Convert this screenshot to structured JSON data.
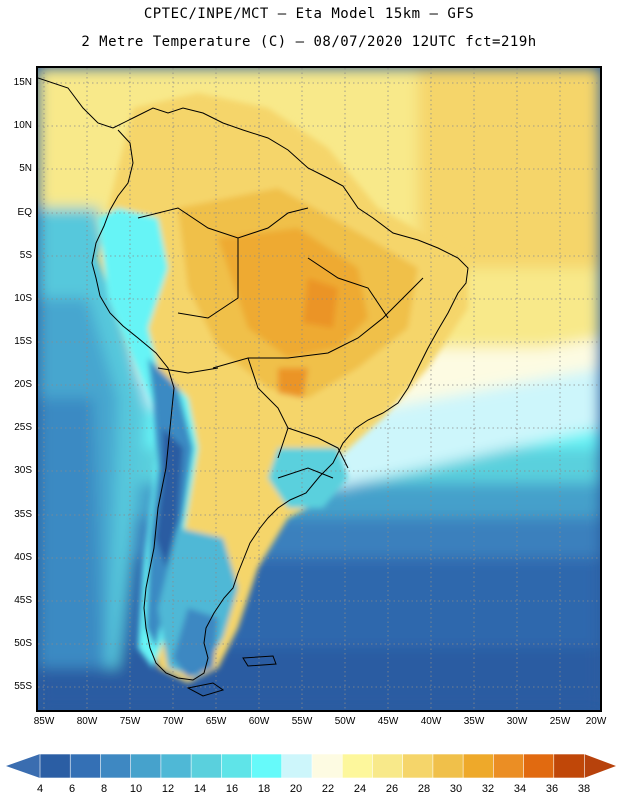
{
  "header": {
    "line1": "CPTEC/INPE/MCT —  Eta Model 15km — GFS",
    "line2": "2 Metre Temperature (C) — 08/07/2020 12UTC fct=219h"
  },
  "map": {
    "latitude_labels": [
      "15N",
      "10N",
      "5N",
      "EQ",
      "5S",
      "10S",
      "15S",
      "20S",
      "25S",
      "30S",
      "35S",
      "40S",
      "45S",
      "50S",
      "55S"
    ],
    "longitude_labels": [
      "85W",
      "80W",
      "75W",
      "70W",
      "65W",
      "60W",
      "55W",
      "50W",
      "45W",
      "40W",
      "35W",
      "30W",
      "25W",
      "20W"
    ]
  },
  "colorbar": {
    "labels": [
      "4",
      "6",
      "8",
      "10",
      "12",
      "14",
      "16",
      "18",
      "20",
      "22",
      "24",
      "26",
      "28",
      "30",
      "32",
      "34",
      "36",
      "38"
    ],
    "colors": [
      "#2b5ea4",
      "#3470b5",
      "#3e88c2",
      "#46a2cc",
      "#4fb8d6",
      "#5ad0dd",
      "#5fe4e8",
      "#66fafa",
      "#cdf6fb",
      "#fdfbe2",
      "#fdf79c",
      "#f8e98a",
      "#f5d56a",
      "#f0c04a",
      "#eea92a",
      "#eb8e24",
      "#e16a10",
      "#c04708"
    ],
    "low_color": "#3a6db0",
    "high_color": "#b7420c"
  }
}
